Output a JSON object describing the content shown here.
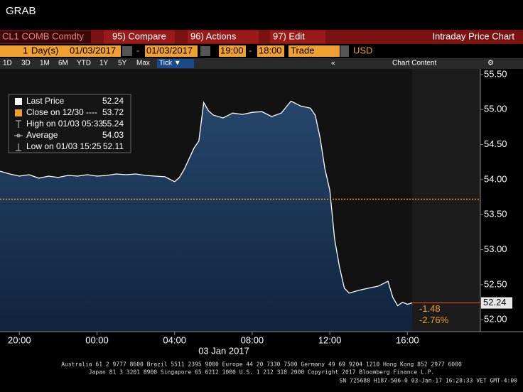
{
  "header": {
    "title": "GRAB"
  },
  "toolbar": {
    "ticker": "CL1 COMB Comdty",
    "buttons": [
      "95) Compare",
      "96) Actions",
      "97) Edit"
    ],
    "chart_name": "Intraday Price Chart"
  },
  "range_bar": {
    "count": "1",
    "unit": "Day(s)",
    "start": "01/03/2017",
    "end": "01/03/2017",
    "time_start": "19:00",
    "time_end": "18:00",
    "field": "Trade",
    "currency": "USD"
  },
  "tabs": [
    "1D",
    "3D",
    "1M",
    "6M",
    "YTD",
    "1Y",
    "5Y",
    "Max",
    "Tick ▼"
  ],
  "chart_content": "Chart Content",
  "legend": {
    "rows": [
      {
        "label": "Last Price",
        "value": "52.24"
      },
      {
        "label": "Close on 12/30 ----",
        "value": "53.72"
      },
      {
        "label": "High on 01/03 05:33",
        "value": "55.24"
      },
      {
        "label": "Average",
        "value": "54.03"
      },
      {
        "label": "Low on 01/03 15:25",
        "value": "52.11"
      }
    ]
  },
  "chart_data": {
    "type": "area",
    "x": [
      "19:00",
      "19:30",
      "20:00",
      "20:30",
      "21:00",
      "21:30",
      "22:00",
      "22:30",
      "23:00",
      "23:30",
      "00:00",
      "00:30",
      "01:00",
      "01:30",
      "02:00",
      "02:30",
      "03:00",
      "03:30",
      "04:00",
      "04:15",
      "04:30",
      "04:45",
      "05:00",
      "05:15",
      "05:30",
      "05:45",
      "06:00",
      "06:30",
      "07:00",
      "07:30",
      "08:00",
      "08:30",
      "09:00",
      "09:30",
      "10:00",
      "10:30",
      "11:00",
      "11:15",
      "11:30",
      "11:45",
      "12:00",
      "12:15",
      "12:30",
      "12:45",
      "13:00",
      "13:30",
      "14:00",
      "14:30",
      "15:00",
      "15:15",
      "15:30",
      "15:45",
      "16:00",
      "16:15"
    ],
    "values": [
      54.12,
      54.08,
      54.05,
      54.07,
      54.02,
      54.05,
      54.03,
      54.06,
      54.05,
      54.07,
      54.05,
      54.06,
      54.08,
      54.07,
      54.08,
      54.06,
      54.05,
      54.04,
      53.97,
      54.03,
      54.15,
      54.3,
      54.45,
      54.55,
      55.1,
      54.98,
      54.92,
      54.88,
      54.95,
      54.93,
      54.96,
      54.97,
      54.9,
      54.95,
      55.12,
      55.05,
      55.02,
      54.92,
      54.6,
      54.15,
      53.85,
      53.15,
      52.75,
      52.45,
      52.38,
      52.42,
      52.45,
      52.48,
      52.55,
      52.32,
      52.2,
      52.25,
      52.22,
      52.24
    ],
    "color": "#ffffff",
    "ylim": [
      51.83,
      55.58
    ],
    "yticks": [
      {
        "value": 52,
        "label": "52.00"
      },
      {
        "value": 52.5,
        "label": "52.50"
      },
      {
        "value": 53,
        "label": "53.00"
      },
      {
        "value": 53.5,
        "label": "53.50"
      },
      {
        "value": 54,
        "label": "54.00"
      },
      {
        "value": 54.5,
        "label": "54.50"
      },
      {
        "value": 55,
        "label": "55.00"
      },
      {
        "value": 55.5,
        "label": "55.50"
      }
    ],
    "xticks": [
      "20:00",
      "00:00",
      "04:00",
      "08:00",
      "12:00",
      "16:00"
    ],
    "date_label": "03 Jan 2017",
    "close_line": {
      "value": 53.72,
      "color": "#f0a030"
    },
    "last_price": {
      "value": 52.24,
      "label": "52.24"
    },
    "change": {
      "value": -1.48,
      "label": "-1.48"
    },
    "change_pct": {
      "value": -2.76,
      "label": "-2.76%"
    }
  },
  "footer": {
    "lines": [
      "Australia 61 2 9777 8600 Brazil 5511 2395 9000 Europe 44 20 7330 7500 Germany 49 69 9204 1210 Hong Kong 852 2977 6000",
      "Japan 81 3 3201 8900     Singapore 65 6212 1000     U.S. 1 212 318 2000     Copyright 2017 Bloomberg Finance L.P.",
      "SN 725688 H187-506-0 03-Jan-17 16:28:33 VET  GMT-4:00"
    ]
  }
}
